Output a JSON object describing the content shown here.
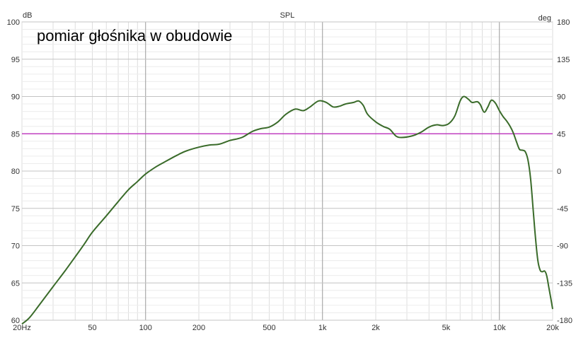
{
  "chart_data": {
    "type": "line",
    "title": "SPL",
    "annotation": "pomiar głośnika w obudowie",
    "left_axis": {
      "unit_label": "dB",
      "ylim": [
        60,
        100
      ],
      "ticks": [
        60,
        65,
        70,
        75,
        80,
        85,
        90,
        95,
        100
      ]
    },
    "right_axis": {
      "unit_label": "deg",
      "ylim": [
        -180,
        180
      ],
      "ticks": [
        "-180",
        "-135",
        "-90",
        "-45",
        "0",
        "45",
        "90",
        "135",
        "180"
      ]
    },
    "x_axis": {
      "scale": "log",
      "xlim": [
        20,
        20000
      ],
      "ticks": [
        {
          "value": 20,
          "label": "20Hz"
        },
        {
          "value": 50,
          "label": "50"
        },
        {
          "value": 100,
          "label": "100"
        },
        {
          "value": 200,
          "label": "200"
        },
        {
          "value": 500,
          "label": "500"
        },
        {
          "value": 1000,
          "label": "1k"
        },
        {
          "value": 2000,
          "label": "2k"
        },
        {
          "value": 5000,
          "label": "5k"
        },
        {
          "value": 10000,
          "label": "10k"
        },
        {
          "value": 20000,
          "label": "20k"
        }
      ]
    },
    "grid": true,
    "reference_line": {
      "axis": "left",
      "value": 85,
      "color": "#c040c0"
    },
    "series": [
      {
        "color": "#3a6b2a",
        "points": [
          [
            20,
            59.5
          ],
          [
            22,
            60.3
          ],
          [
            25,
            62.0
          ],
          [
            30,
            64.5
          ],
          [
            35,
            66.6
          ],
          [
            40,
            68.5
          ],
          [
            45,
            70.2
          ],
          [
            50,
            71.8
          ],
          [
            60,
            74.0
          ],
          [
            70,
            75.9
          ],
          [
            80,
            77.5
          ],
          [
            90,
            78.6
          ],
          [
            100,
            79.6
          ],
          [
            115,
            80.6
          ],
          [
            130,
            81.3
          ],
          [
            150,
            82.1
          ],
          [
            170,
            82.7
          ],
          [
            200,
            83.2
          ],
          [
            230,
            83.5
          ],
          [
            260,
            83.6
          ],
          [
            300,
            84.1
          ],
          [
            350,
            84.5
          ],
          [
            400,
            85.3
          ],
          [
            450,
            85.7
          ],
          [
            500,
            85.9
          ],
          [
            560,
            86.6
          ],
          [
            620,
            87.6
          ],
          [
            700,
            88.3
          ],
          [
            780,
            88.1
          ],
          [
            850,
            88.6
          ],
          [
            950,
            89.4
          ],
          [
            1050,
            89.2
          ],
          [
            1150,
            88.6
          ],
          [
            1250,
            88.7
          ],
          [
            1350,
            89.0
          ],
          [
            1500,
            89.2
          ],
          [
            1600,
            89.4
          ],
          [
            1700,
            88.8
          ],
          [
            1800,
            87.6
          ],
          [
            2000,
            86.6
          ],
          [
            2200,
            86.0
          ],
          [
            2400,
            85.6
          ],
          [
            2600,
            84.7
          ],
          [
            2800,
            84.5
          ],
          [
            3200,
            84.7
          ],
          [
            3600,
            85.2
          ],
          [
            4000,
            85.9
          ],
          [
            4400,
            86.2
          ],
          [
            4800,
            86.1
          ],
          [
            5200,
            86.4
          ],
          [
            5600,
            87.4
          ],
          [
            6000,
            89.4
          ],
          [
            6300,
            90.0
          ],
          [
            6700,
            89.6
          ],
          [
            7000,
            89.2
          ],
          [
            7500,
            89.3
          ],
          [
            7800,
            88.9
          ],
          [
            8200,
            87.9
          ],
          [
            8600,
            88.6
          ],
          [
            9000,
            89.5
          ],
          [
            9500,
            89.1
          ],
          [
            10000,
            88.1
          ],
          [
            10500,
            87.3
          ],
          [
            11000,
            86.7
          ],
          [
            11500,
            86.0
          ],
          [
            12000,
            85.1
          ],
          [
            12500,
            83.9
          ],
          [
            13000,
            82.9
          ],
          [
            13500,
            82.8
          ],
          [
            14000,
            82.6
          ],
          [
            14500,
            81.5
          ],
          [
            15000,
            79.0
          ],
          [
            15500,
            75.0
          ],
          [
            16000,
            71.0
          ],
          [
            16500,
            68.0
          ],
          [
            17000,
            66.7
          ],
          [
            17500,
            66.5
          ],
          [
            18000,
            66.6
          ],
          [
            18500,
            66.0
          ],
          [
            19000,
            64.5
          ],
          [
            19500,
            63.0
          ],
          [
            20000,
            61.5
          ]
        ]
      }
    ]
  }
}
